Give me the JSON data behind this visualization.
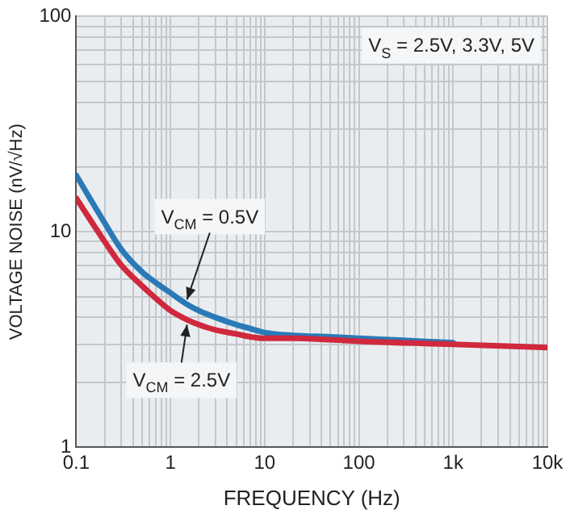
{
  "chart_data": {
    "type": "line",
    "xlabel": "FREQUENCY (Hz)",
    "ylabel": "VOLTAGE NOISE (nV/√Hz)",
    "log": "xy",
    "grid": true,
    "legend": false,
    "marker": "none",
    "line_style": "solid",
    "x": [
      0.1,
      0.2,
      0.3,
      0.5,
      0.7,
      1,
      1.5,
      2,
      3,
      5,
      7,
      10,
      20,
      50,
      100,
      1000,
      10000
    ],
    "series": [
      {
        "name": "V$_{CM}$ = 0.5V",
        "color": "#2a7ab8",
        "values": [
          18.3,
          11,
          8.3,
          6.5,
          5.8,
          5.2,
          4.6,
          4.3,
          4.0,
          3.7,
          3.55,
          3.4,
          3.3,
          3.25,
          3.2,
          3.05,
          null
        ]
      },
      {
        "name": "V$_{CM}$ = 2.5V",
        "color": "#d0283c",
        "values": [
          14.3,
          9,
          7.0,
          5.6,
          4.9,
          4.3,
          3.9,
          3.7,
          3.5,
          3.35,
          3.25,
          3.2,
          3.2,
          3.15,
          3.1,
          3.0,
          2.9
        ]
      }
    ],
    "xlim": [
      0.1,
      10000
    ],
    "ylim": [
      1,
      100
    ],
    "xticks": [
      {
        "value": 0.1,
        "label": "0.1"
      },
      {
        "value": 0.2,
        "label": null
      },
      {
        "value": 0.3,
        "label": null
      },
      {
        "value": 0.4,
        "label": null
      },
      {
        "value": 0.5,
        "label": null
      },
      {
        "value": 0.6,
        "label": null
      },
      {
        "value": 0.7,
        "label": null
      },
      {
        "value": 0.8,
        "label": null
      },
      {
        "value": 0.9,
        "label": null
      },
      {
        "value": 1,
        "label": "1"
      },
      {
        "value": 2,
        "label": null
      },
      {
        "value": 3,
        "label": null
      },
      {
        "value": 4,
        "label": null
      },
      {
        "value": 5,
        "label": null
      },
      {
        "value": 6,
        "label": null
      },
      {
        "value": 7,
        "label": null
      },
      {
        "value": 8,
        "label": null
      },
      {
        "value": 9,
        "label": null
      },
      {
        "value": 10,
        "label": "10"
      },
      {
        "value": 20,
        "label": null
      },
      {
        "value": 30,
        "label": null
      },
      {
        "value": 40,
        "label": null
      },
      {
        "value": 50,
        "label": null
      },
      {
        "value": 60,
        "label": null
      },
      {
        "value": 70,
        "label": null
      },
      {
        "value": 80,
        "label": null
      },
      {
        "value": 90,
        "label": null
      },
      {
        "value": 100,
        "label": "100"
      },
      {
        "value": 200,
        "label": null
      },
      {
        "value": 300,
        "label": null
      },
      {
        "value": 400,
        "label": null
      },
      {
        "value": 500,
        "label": null
      },
      {
        "value": 600,
        "label": null
      },
      {
        "value": 700,
        "label": null
      },
      {
        "value": 800,
        "label": null
      },
      {
        "value": 900,
        "label": null
      },
      {
        "value": 1000,
        "label": "1k"
      },
      {
        "value": 2000,
        "label": null
      },
      {
        "value": 3000,
        "label": null
      },
      {
        "value": 4000,
        "label": null
      },
      {
        "value": 5000,
        "label": null
      },
      {
        "value": 6000,
        "label": null
      },
      {
        "value": 7000,
        "label": null
      },
      {
        "value": 8000,
        "label": null
      },
      {
        "value": 9000,
        "label": null
      },
      {
        "value": 10000,
        "label": "10k"
      }
    ],
    "yticks": [
      1,
      {
        "value": 2,
        "label": null
      },
      {
        "value": 3,
        "label": null
      },
      {
        "value": 4,
        "label": null
      },
      {
        "value": 5,
        "label": null
      },
      {
        "value": 6,
        "label": null
      },
      {
        "value": 7,
        "label": null
      },
      {
        "value": 8,
        "label": null
      },
      {
        "value": 9,
        "label": null
      },
      10,
      {
        "value": 20,
        "label": null
      },
      {
        "value": 30,
        "label": null
      },
      {
        "value": 40,
        "label": null
      },
      {
        "value": 50,
        "label": null
      },
      {
        "value": 60,
        "label": null
      },
      {
        "value": 70,
        "label": null
      },
      {
        "value": 80,
        "label": null
      },
      {
        "value": 90,
        "label": null
      },
      100
    ],
    "annotations": [
      "V$_{S}$ = 2.5V, 3.3V, 5V"
    ]
  }
}
